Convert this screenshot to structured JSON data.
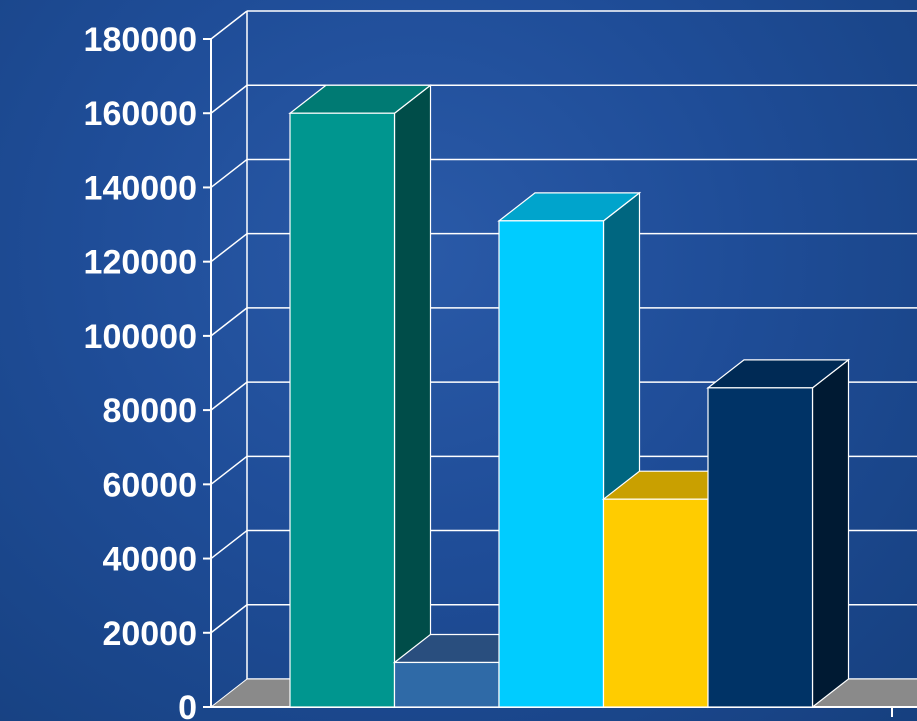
{
  "chart_data": {
    "type": "bar",
    "categories": [
      "",
      "",
      "",
      "",
      ""
    ],
    "values": [
      160000,
      12000,
      131000,
      56000,
      86000
    ],
    "ylim": [
      0,
      180000
    ],
    "yticks": [
      0,
      20000,
      40000,
      60000,
      80000,
      100000,
      120000,
      140000,
      160000,
      180000
    ],
    "ytick_labels": [
      "0",
      "20000",
      "40000",
      "60000",
      "80000",
      "100000",
      "120000",
      "140000",
      "160000",
      "180000"
    ],
    "grid": true,
    "three_d": true,
    "legend": "none",
    "colors": {
      "background": "#1d4a93",
      "gridline": "#ffffff",
      "floor": "#8a8a8a",
      "bars": [
        {
          "front": "#00968f",
          "top": "#007a73",
          "side": "#004d49"
        },
        {
          "front": "#2f6aa7",
          "top": "#294e7e",
          "side": "#1f3f66"
        },
        {
          "front": "#00ccff",
          "top": "#00a4cc",
          "side": "#006680"
        },
        {
          "front": "#ffcc00",
          "top": "#c9a000",
          "side": "#8a6d00"
        },
        {
          "front": "#003366",
          "top": "#002a55",
          "side": "#001a33"
        }
      ]
    }
  }
}
